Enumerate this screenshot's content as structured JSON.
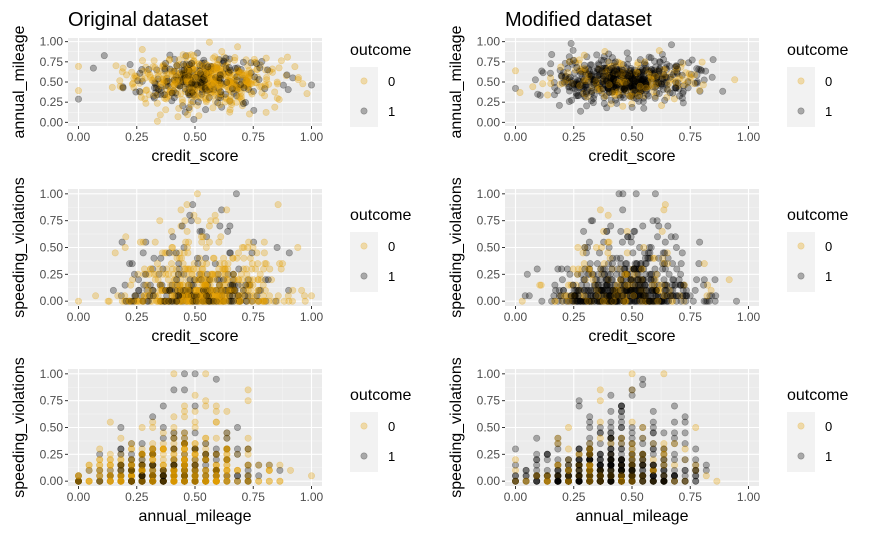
{
  "colors": {
    "panel_background": "#ebebeb",
    "grid_major": "#ffffff",
    "grid_minor": "#f5f5f5",
    "tick_text": "#4d4d4d",
    "outcome_0": "#E69F00",
    "outcome_1": "#000000",
    "legend_key_background": "#f2f2f2"
  },
  "legend": {
    "title": "outcome",
    "labels": [
      "0",
      "1"
    ]
  },
  "chart_data": [
    {
      "type": "scatter",
      "title": "Original dataset",
      "xlabel": "credit_score",
      "ylabel": "annual_mileage",
      "xlim": [
        0,
        1
      ],
      "ylim": [
        0,
        1
      ],
      "xticks": [
        "0.00",
        "0.25",
        "0.50",
        "0.75",
        "1.00"
      ],
      "yticks": [
        "0.00",
        "0.25",
        "0.50",
        "0.75",
        "1.00"
      ],
      "grid": true,
      "legend_position": "right",
      "pattern": {
        "x": "continuous",
        "x_mean": 0.52,
        "x_sd": 0.16,
        "y": "continuous",
        "y_mean": 0.52,
        "y_sd": 0.15,
        "share_outcome_1": 0.3
      }
    },
    {
      "type": "scatter",
      "title": "Modified dataset",
      "xlabel": "credit_score",
      "ylabel": "annual_mileage",
      "xlim": [
        0,
        1
      ],
      "ylim": [
        0,
        1
      ],
      "xticks": [
        "0.00",
        "0.25",
        "0.50",
        "0.75",
        "1.00"
      ],
      "yticks": [
        "0.00",
        "0.25",
        "0.50",
        "0.75",
        "1.00"
      ],
      "grid": true,
      "legend_position": "right",
      "pattern": {
        "x": "continuous",
        "x_mean": 0.47,
        "x_sd": 0.15,
        "y": "continuous",
        "y_mean": 0.52,
        "y_sd": 0.13,
        "share_outcome_1": 0.75
      }
    },
    {
      "type": "scatter",
      "title": "",
      "xlabel": "credit_score",
      "ylabel": "speeding_violations",
      "xlim": [
        0,
        1
      ],
      "ylim": [
        0,
        1
      ],
      "xticks": [
        "0.00",
        "0.25",
        "0.50",
        "0.75",
        "1.00"
      ],
      "yticks": [
        "0.00",
        "0.25",
        "0.50",
        "0.75",
        "1.00"
      ],
      "grid": true,
      "legend_position": "right",
      "pattern": {
        "x": "continuous",
        "x_mean": 0.52,
        "x_sd": 0.16,
        "y": "count",
        "y_max": 1.0,
        "share_outcome_1": 0.3
      }
    },
    {
      "type": "scatter",
      "title": "",
      "xlabel": "credit_score",
      "ylabel": "speeding_violations",
      "xlim": [
        0,
        1
      ],
      "ylim": [
        0,
        1
      ],
      "xticks": [
        "0.00",
        "0.25",
        "0.50",
        "0.75",
        "1.00"
      ],
      "yticks": [
        "0.00",
        "0.25",
        "0.50",
        "0.75",
        "1.00"
      ],
      "grid": true,
      "legend_position": "right",
      "pattern": {
        "x": "continuous",
        "x_mean": 0.47,
        "x_sd": 0.15,
        "y": "count",
        "y_max": 1.0,
        "share_outcome_1": 0.75
      }
    },
    {
      "type": "scatter",
      "title": "",
      "xlabel": "annual_mileage",
      "ylabel": "speeding_violations",
      "xlim": [
        0,
        1
      ],
      "ylim": [
        0,
        1
      ],
      "xticks": [
        "0.00",
        "0.25",
        "0.50",
        "0.75",
        "1.00"
      ],
      "yticks": [
        "0.00",
        "0.25",
        "0.50",
        "0.75",
        "1.00"
      ],
      "grid": true,
      "legend_position": "right",
      "pattern": {
        "x": "discrete",
        "x_step": 0.0455,
        "y": "count",
        "y_max": 1.0,
        "share_outcome_1": 0.3
      }
    },
    {
      "type": "scatter",
      "title": "",
      "xlabel": "annual_mileage",
      "ylabel": "speeding_violations",
      "xlim": [
        0,
        1
      ],
      "ylim": [
        0,
        1
      ],
      "xticks": [
        "0.00",
        "0.25",
        "0.50",
        "0.75",
        "1.00"
      ],
      "yticks": [
        "0.00",
        "0.25",
        "0.50",
        "0.75",
        "1.00"
      ],
      "grid": true,
      "legend_position": "right",
      "pattern": {
        "x": "discrete",
        "x_step": 0.0455,
        "y": "count",
        "y_max": 1.0,
        "share_outcome_1": 0.75
      }
    }
  ]
}
